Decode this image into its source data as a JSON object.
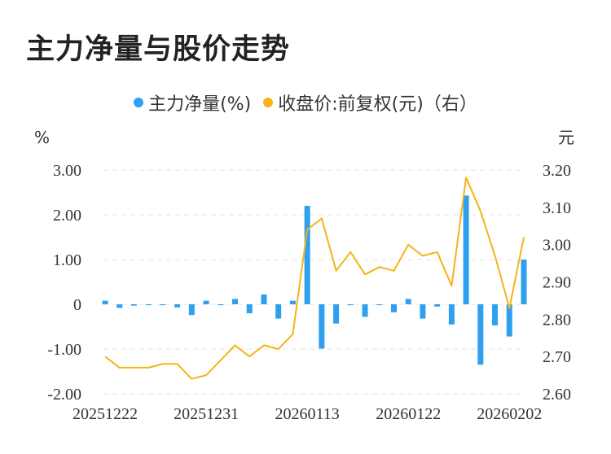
{
  "chart_data": {
    "type": "bar+line",
    "title": "主力净量与股价走势",
    "legend": [
      {
        "name": "主力净量(%)",
        "color": "#2f9ff0"
      },
      {
        "name": "收盘价:前复权(元)（右）",
        "color": "#f5b417"
      }
    ],
    "left_axis": {
      "unit": "%",
      "ticks": [
        "3.00",
        "2.00",
        "1.00",
        "0",
        "-1.00",
        "-2.00"
      ],
      "ylim": [
        -2,
        3
      ]
    },
    "right_axis": {
      "unit": "元",
      "ticks": [
        "3.20",
        "3.10",
        "3.00",
        "2.90",
        "2.80",
        "2.70",
        "2.60"
      ],
      "ylim": [
        2.6,
        3.2
      ]
    },
    "x_tick_labels": [
      "20251222",
      "20251231",
      "20260113",
      "20260122",
      "20260202"
    ],
    "x_tick_index": [
      0,
      7,
      14,
      21,
      28
    ],
    "bar_series": {
      "name": "主力净量(%)",
      "color": "#2f9ff0",
      "values": [
        0.08,
        -0.08,
        -0.03,
        -0.02,
        -0.02,
        -0.07,
        -0.24,
        0.08,
        -0.02,
        0.12,
        -0.2,
        0.22,
        -0.32,
        0.08,
        2.2,
        -0.99,
        -0.43,
        -0.02,
        -0.28,
        -0.02,
        -0.18,
        0.12,
        -0.32,
        -0.05,
        -0.45,
        2.43,
        -1.35,
        -0.47,
        -0.72,
        1.0
      ]
    },
    "line_series": {
      "name": "收盘价:前复权(元)",
      "color": "#f5b417",
      "values": [
        2.7,
        2.67,
        2.67,
        2.67,
        2.68,
        2.68,
        2.64,
        2.65,
        2.69,
        2.73,
        2.7,
        2.73,
        2.72,
        2.76,
        3.04,
        3.07,
        2.93,
        2.98,
        2.92,
        2.94,
        2.93,
        3.0,
        2.97,
        2.98,
        2.89,
        3.18,
        3.09,
        2.97,
        2.83,
        3.02
      ]
    },
    "grid": true
  }
}
